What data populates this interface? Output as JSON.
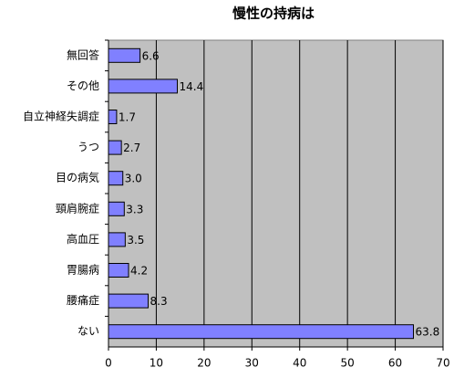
{
  "chart_data": {
    "type": "barh",
    "title": "慢性の持病は",
    "categories": [
      "無回答",
      "その他",
      "自立神経失調症",
      "うつ",
      "目の病気",
      "頸肩腕症",
      "高血圧",
      "胃腸病",
      "腰痛症",
      "ない"
    ],
    "values": [
      6.6,
      14.4,
      1.7,
      2.7,
      3.0,
      3.3,
      3.5,
      4.2,
      8.3,
      63.8
    ],
    "value_labels": [
      "6.6",
      "14.4",
      "1.7",
      "2.7",
      "3.0",
      "3.3",
      "3.5",
      "4.2",
      "8.3",
      "63.8"
    ],
    "color": "#8080ff",
    "xlim": [
      0,
      70
    ],
    "xticks": [
      0,
      10,
      20,
      30,
      40,
      50,
      60,
      70
    ],
    "grid": true
  }
}
